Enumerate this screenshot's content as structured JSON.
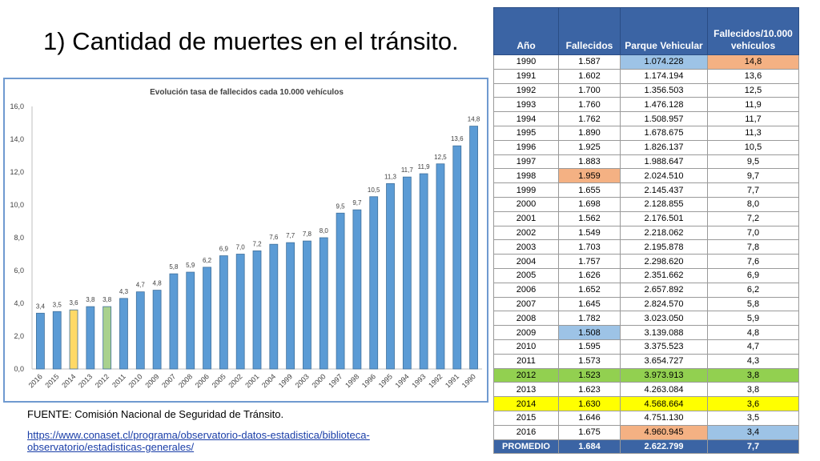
{
  "title": "1) Cantidad de muertes en el tránsito.",
  "source": "FUENTE: Comisión Nacional de Seguridad de Tránsito.",
  "link": "https://www.conaset.cl/programa/observatorio-datos-estadistica/biblioteca-observatorio/estadisticas-generales/",
  "colors": {
    "bar": "#5b9bd5",
    "bar_yellow": "#ffd966",
    "bar_green": "#a9d18e",
    "header": "#3b64a4"
  },
  "chart_data": {
    "type": "bar",
    "title": "Evolución tasa de fallecidos cada 10.000 vehículos",
    "xlabel": "",
    "ylabel": "",
    "ylim": [
      0,
      16
    ],
    "yticks": [
      "0,0",
      "2,0",
      "4,0",
      "6,0",
      "8,0",
      "10,0",
      "12,0",
      "14,0",
      "16,0"
    ],
    "grid": false,
    "categories": [
      "2016",
      "2015",
      "2014",
      "2013",
      "2012",
      "2011",
      "2010",
      "2009",
      "2007",
      "2008",
      "2006",
      "2005",
      "2002",
      "2001",
      "2004",
      "1999",
      "2003",
      "2000",
      "1997",
      "1998",
      "1996",
      "1995",
      "1994",
      "1993",
      "1992",
      "1991",
      "1990"
    ],
    "values": [
      3.4,
      3.5,
      3.6,
      3.8,
      3.8,
      4.3,
      4.7,
      4.8,
      5.8,
      5.9,
      6.2,
      6.9,
      7.0,
      7.2,
      7.6,
      7.7,
      7.8,
      8.0,
      9.5,
      9.7,
      10.5,
      11.3,
      11.7,
      11.9,
      12.5,
      13.6,
      14.8
    ],
    "labels": [
      "3,4",
      "3,5",
      "3,6",
      "3,8",
      "3,8",
      "4,3",
      "4,7",
      "4,8",
      "5,8",
      "5,9",
      "6,2",
      "6,9",
      "7,0",
      "7,2",
      "7,6",
      "7,7",
      "7,8",
      "8,0",
      "9,5",
      "9,7",
      "10,5",
      "11,3",
      "11,7",
      "11,9",
      "12,5",
      "13,6",
      "14,8"
    ],
    "highlight": {
      "2014": "yellow",
      "2012": "green"
    }
  },
  "table": {
    "headers": [
      "Año",
      "Fallecidos",
      "Parque Vehicular",
      "Fallecidos/10.000 vehículos"
    ],
    "rows": [
      [
        "1990",
        "1.587",
        "1.074.228",
        "14,8"
      ],
      [
        "1991",
        "1.602",
        "1.174.194",
        "13,6"
      ],
      [
        "1992",
        "1.700",
        "1.356.503",
        "12,5"
      ],
      [
        "1993",
        "1.760",
        "1.476.128",
        "11,9"
      ],
      [
        "1994",
        "1.762",
        "1.508.957",
        "11,7"
      ],
      [
        "1995",
        "1.890",
        "1.678.675",
        "11,3"
      ],
      [
        "1996",
        "1.925",
        "1.826.137",
        "10,5"
      ],
      [
        "1997",
        "1.883",
        "1.988.647",
        "9,5"
      ],
      [
        "1998",
        "1.959",
        "2.024.510",
        "9,7"
      ],
      [
        "1999",
        "1.655",
        "2.145.437",
        "7,7"
      ],
      [
        "2000",
        "1.698",
        "2.128.855",
        "8,0"
      ],
      [
        "2001",
        "1.562",
        "2.176.501",
        "7,2"
      ],
      [
        "2002",
        "1.549",
        "2.218.062",
        "7,0"
      ],
      [
        "2003",
        "1.703",
        "2.195.878",
        "7,8"
      ],
      [
        "2004",
        "1.757",
        "2.298.620",
        "7,6"
      ],
      [
        "2005",
        "1.626",
        "2.351.662",
        "6,9"
      ],
      [
        "2006",
        "1.652",
        "2.657.892",
        "6,2"
      ],
      [
        "2007",
        "1.645",
        "2.824.570",
        "5,8"
      ],
      [
        "2008",
        "1.782",
        "3.023.050",
        "5,9"
      ],
      [
        "2009",
        "1.508",
        "3.139.088",
        "4,8"
      ],
      [
        "2010",
        "1.595",
        "3.375.523",
        "4,7"
      ],
      [
        "2011",
        "1.573",
        "3.654.727",
        "4,3"
      ],
      [
        "2012",
        "1.523",
        "3.973.913",
        "3,8"
      ],
      [
        "2013",
        "1.623",
        "4.263.084",
        "3,8"
      ],
      [
        "2014",
        "1.630",
        "4.568.664",
        "3,6"
      ],
      [
        "2015",
        "1.646",
        "4.751.130",
        "3,5"
      ],
      [
        "2016",
        "1.675",
        "4.960.945",
        "3,4"
      ]
    ],
    "average": [
      "PROMEDIO",
      "1.684",
      "2.622.799",
      "7,7"
    ],
    "cell_highlights": [
      {
        "row": 0,
        "col": 2,
        "color": "#9dc3e6"
      },
      {
        "row": 0,
        "col": 3,
        "color": "#f4b183"
      },
      {
        "row": 8,
        "col": 1,
        "color": "#f4b183"
      },
      {
        "row": 19,
        "col": 1,
        "color": "#9dc3e6"
      },
      {
        "row": 26,
        "col": 2,
        "color": "#f4b183"
      },
      {
        "row": 26,
        "col": 3,
        "color": "#9dc3e6"
      }
    ],
    "row_highlights": [
      {
        "row": 22,
        "color": "#92d050"
      },
      {
        "row": 24,
        "color": "#ffff00"
      }
    ]
  }
}
